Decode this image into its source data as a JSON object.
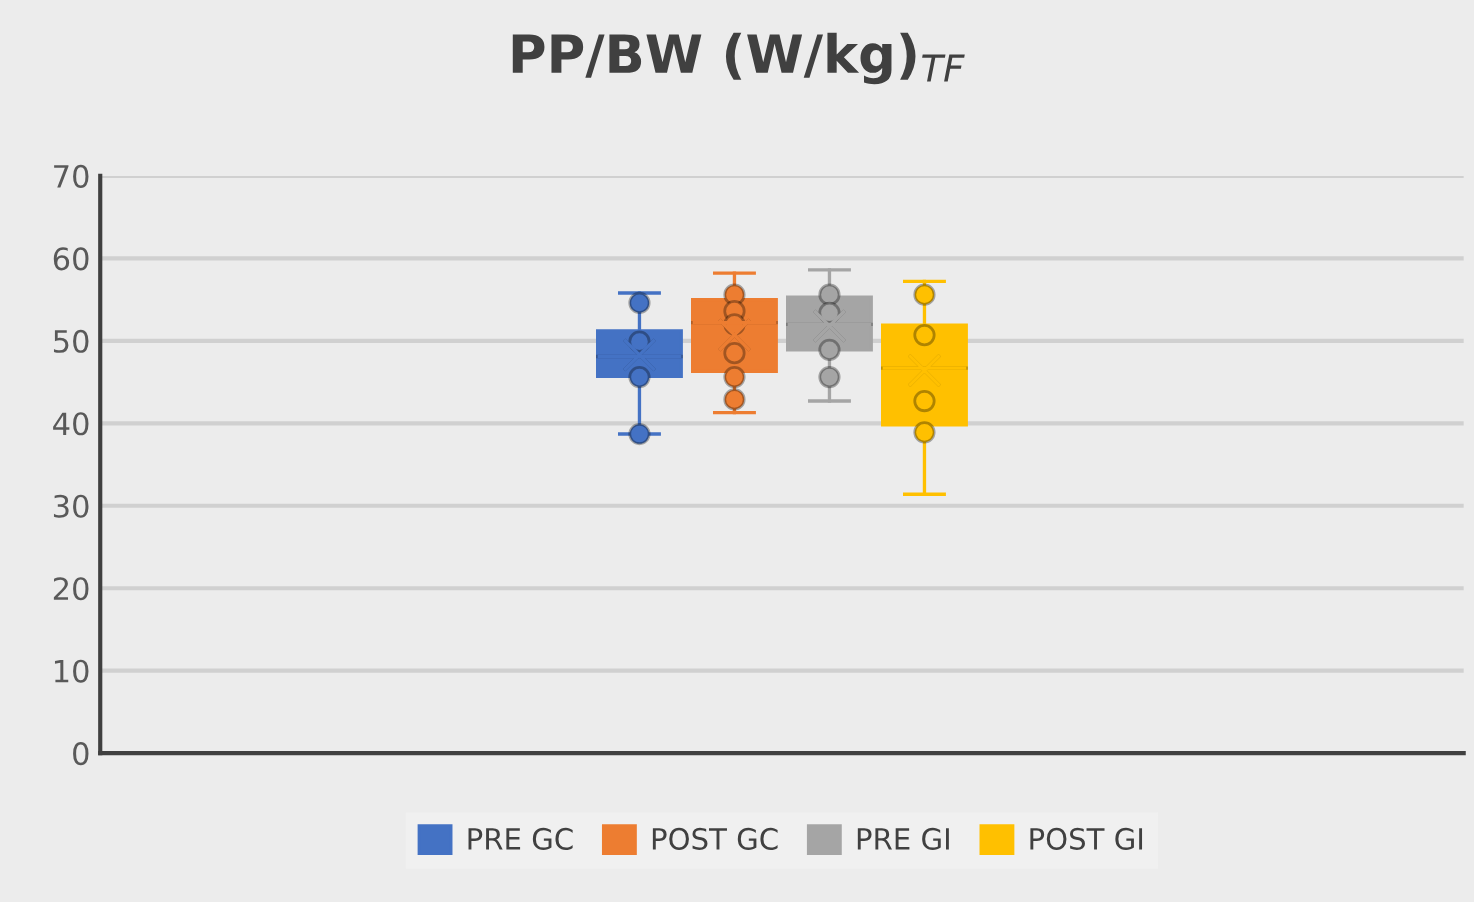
{
  "chart_data": {
    "type": "box",
    "title": "PP/BW (W/kg)$_{TF}$",
    "categories": [
      null
    ],
    "ylim": [
      0,
      70
    ],
    "yticks": [
      0,
      10,
      20,
      30,
      40,
      50,
      60,
      70
    ],
    "grid": "y",
    "legend": "bottom",
    "tick_labels": "y",
    "marker": "circle",
    "series": [
      {
        "name": "PRE GC",
        "color": "#4472c4",
        "boxes": [
          {
            "low": 38.7,
            "q1": 45.7,
            "median": 48.1,
            "q3": 51.2,
            "high": 55.8,
            "mean": 48.3,
            "outliers": [
              54.6,
              49.9,
              45.6,
              38.7
            ]
          }
        ]
      },
      {
        "name": "POST GC",
        "color": "#ed7d31",
        "boxes": [
          {
            "low": 41.3,
            "q1": 46.3,
            "median": 52.2,
            "q3": 55.0,
            "high": 58.2,
            "mean": 50.7,
            "outliers": [
              55.6,
              53.6,
              52.0,
              48.5,
              45.6,
              42.9
            ]
          }
        ]
      },
      {
        "name": "PRE GI",
        "color": "#a5a5a5",
        "boxes": [
          {
            "low": 42.7,
            "q1": 48.9,
            "median": 52.0,
            "q3": 55.3,
            "high": 58.6,
            "mean": 51.8,
            "outliers": [
              55.6,
              53.4,
              48.9,
              45.6
            ]
          }
        ]
      },
      {
        "name": "POST GI",
        "color": "#ffc000",
        "boxes": [
          {
            "low": 31.4,
            "q1": 39.8,
            "median": 46.7,
            "q3": 51.9,
            "high": 57.2,
            "mean": 46.4,
            "outliers": [
              55.6,
              50.7,
              42.7,
              38.9
            ]
          }
        ]
      }
    ]
  }
}
